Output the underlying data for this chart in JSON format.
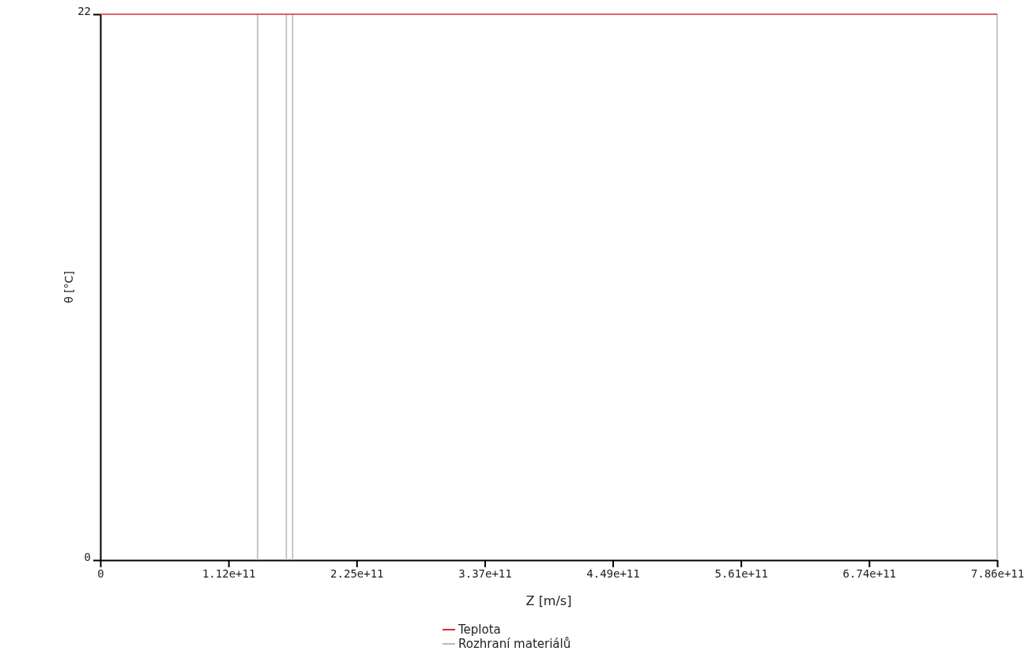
{
  "chart_data": {
    "type": "line",
    "xlabel": "Z [m/s]",
    "ylabel": "θ [°C]",
    "xlim": [
      0,
      786000000000
    ],
    "ylim": [
      0,
      22
    ],
    "xticks": [
      0,
      {
        "value": 112300000000,
        "label": "1.12e+11"
      },
      {
        "value": 224600000000,
        "label": "2.25e+11"
      },
      {
        "value": 336900000000,
        "label": "3.37e+11"
      },
      {
        "value": 449100000000,
        "label": "4.49e+11"
      },
      {
        "value": 561400000000,
        "label": "5.61e+11"
      },
      {
        "value": 673700000000,
        "label": "6.74e+11"
      },
      {
        "value": 786000000000,
        "label": "7.86e+11"
      }
    ],
    "yticks": [
      0,
      22
    ],
    "grid": false,
    "legend": "bottom",
    "marker": "none",
    "line_style": "solid",
    "series": [
      {
        "name": "Teplota",
        "color": "#d03030",
        "x": [
          0,
          786000000000
        ],
        "values": [
          22,
          22
        ]
      },
      {
        "name": "Rozhraní materiálů",
        "color": "#b8b8b8",
        "x": [
          137800000000,
          137800000000,
          null,
          163000000000,
          163000000000,
          null,
          168500000000,
          168500000000,
          null,
          786000000000,
          786000000000
        ],
        "values": [
          0,
          22,
          null,
          0,
          22,
          null,
          0,
          22,
          null,
          0,
          22
        ]
      }
    ]
  }
}
